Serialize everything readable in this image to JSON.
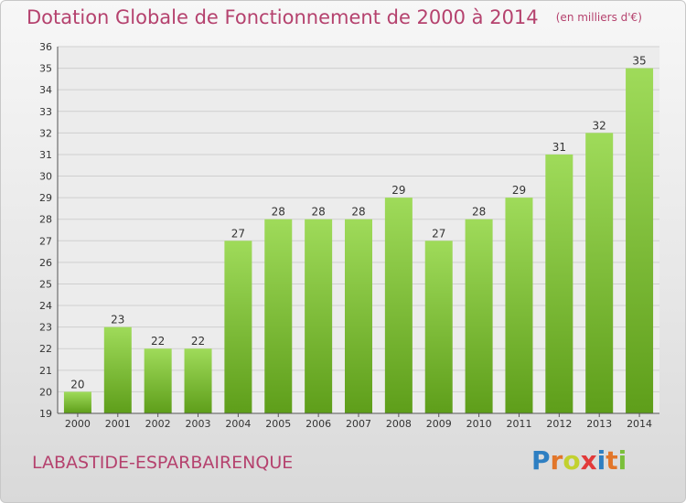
{
  "title": "Dotation Globale de Fonctionnement de 2000 à 2014",
  "unit_note": "(en milliers d'€)",
  "commune": "LABASTIDE-ESPARBAIRENQUE",
  "logo": {
    "text": "Proxiti",
    "letters": [
      {
        "ch": "P",
        "color": "#2e7fc2"
      },
      {
        "ch": "r",
        "color": "#e2762a"
      },
      {
        "ch": "o",
        "color": "#c2d12f"
      },
      {
        "ch": "x",
        "color": "#e23a3a"
      },
      {
        "ch": "i",
        "color": "#2e7fc2"
      },
      {
        "ch": "t",
        "color": "#e2762a"
      },
      {
        "ch": "i",
        "color": "#7abf3a"
      }
    ]
  },
  "colors": {
    "title": "#b5426e",
    "bar_top": "#9fdb5a",
    "bar_bottom": "#5e9e1a"
  },
  "chart_data": {
    "type": "bar",
    "categories": [
      "2000",
      "2001",
      "2002",
      "2003",
      "2004",
      "2005",
      "2006",
      "2007",
      "2008",
      "2009",
      "2010",
      "2011",
      "2012",
      "2013",
      "2014"
    ],
    "values": [
      20,
      23,
      22,
      22,
      27,
      28,
      28,
      28,
      29,
      27,
      28,
      29,
      31,
      32,
      35
    ],
    "ylim": [
      19,
      36
    ],
    "yticks": [
      19,
      20,
      21,
      22,
      23,
      24,
      25,
      26,
      27,
      28,
      29,
      30,
      31,
      32,
      33,
      34,
      35,
      36
    ],
    "grid": true,
    "title": "Dotation Globale de Fonctionnement de 2000 à 2014",
    "xlabel": "",
    "ylabel": ""
  }
}
